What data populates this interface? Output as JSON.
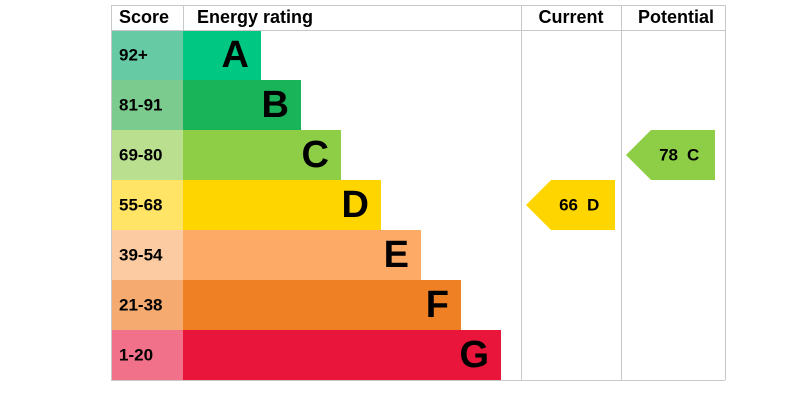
{
  "header": {
    "score": "Score",
    "energy_rating": "Energy rating",
    "current": "Current",
    "potential": "Potential"
  },
  "bands": [
    {
      "range": "92+",
      "letter": "A",
      "color": "#00c781",
      "score_color": "#66cba5"
    },
    {
      "range": "81-91",
      "letter": "B",
      "color": "#19b459",
      "score_color": "#7ccb8e"
    },
    {
      "range": "69-80",
      "letter": "C",
      "color": "#8dce46",
      "score_color": "#b9df8f"
    },
    {
      "range": "55-68",
      "letter": "D",
      "color": "#ffd500",
      "score_color": "#ffe465"
    },
    {
      "range": "39-54",
      "letter": "E",
      "color": "#fcaa65",
      "score_color": "#fdcba2"
    },
    {
      "range": "21-38",
      "letter": "F",
      "color": "#ef8023",
      "score_color": "#f5aa70"
    },
    {
      "range": "1-20",
      "letter": "G",
      "color": "#e9153b",
      "score_color": "#f07189"
    }
  ],
  "current": {
    "value": 66,
    "letter": "D",
    "color": "#ffd500"
  },
  "potential": {
    "value": 78,
    "letter": "C",
    "color": "#8dce46"
  }
}
